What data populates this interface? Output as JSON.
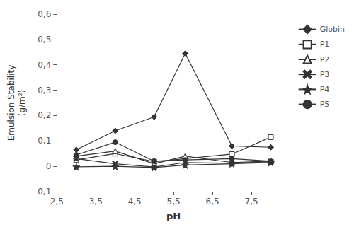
{
  "chart_data": {
    "type": "line",
    "xlabel": "pH",
    "ylabel": "Emulsion Stability\n(g/m²)",
    "x": [
      3.0,
      4.0,
      5.0,
      5.8,
      7.0,
      8.0
    ],
    "xlim": [
      2.5,
      8.5
    ],
    "ylim": [
      -0.1,
      0.6
    ],
    "xticks": [
      {
        "value": 2.5,
        "label": "2,5"
      },
      {
        "value": 3.5,
        "label": "3,5"
      },
      {
        "value": 4.5,
        "label": "4,5"
      },
      {
        "value": 5.5,
        "label": "5,5"
      },
      {
        "value": 6.5,
        "label": "6,5"
      },
      {
        "value": 7.5,
        "label": "7,5"
      }
    ],
    "yticks": [
      {
        "value": -0.1,
        "label": "-0,1"
      },
      0,
      {
        "value": 0.1,
        "label": "0,1"
      },
      {
        "value": 0.2,
        "label": "0,2"
      },
      {
        "value": 0.3,
        "label": "0,3"
      },
      {
        "value": 0.4,
        "label": "0,4"
      },
      {
        "value": 0.5,
        "label": "0,5"
      },
      {
        "value": 0.6,
        "label": "0,6"
      }
    ],
    "grid": false,
    "legend": "upper right",
    "series": [
      {
        "name": "Globin",
        "color": "#333333",
        "marker": "diamond",
        "values": [
          0.065,
          0.14,
          0.195,
          0.445,
          0.08,
          0.075
        ]
      },
      {
        "name": "P1",
        "color": "#333333",
        "marker": "square_open",
        "values": [
          0.025,
          0.05,
          0.018,
          0.03,
          0.048,
          0.115
        ]
      },
      {
        "name": "P2",
        "color": "#333333",
        "marker": "triangle_open",
        "values": [
          0.04,
          0.06,
          0.01,
          0.04,
          0.015,
          0.02
        ]
      },
      {
        "name": "P3",
        "color": "#333333",
        "marker": "x",
        "values": [
          0.03,
          0.01,
          -0.003,
          0.015,
          0.012,
          0.018
        ]
      },
      {
        "name": "P4",
        "color": "#333333",
        "marker": "star",
        "values": [
          -0.002,
          0.0,
          -0.005,
          0.005,
          0.01,
          0.015
        ]
      },
      {
        "name": "P5",
        "color": "#333333",
        "marker": "circle",
        "values": [
          0.045,
          0.095,
          0.02,
          0.025,
          0.03,
          0.02
        ]
      }
    ]
  }
}
